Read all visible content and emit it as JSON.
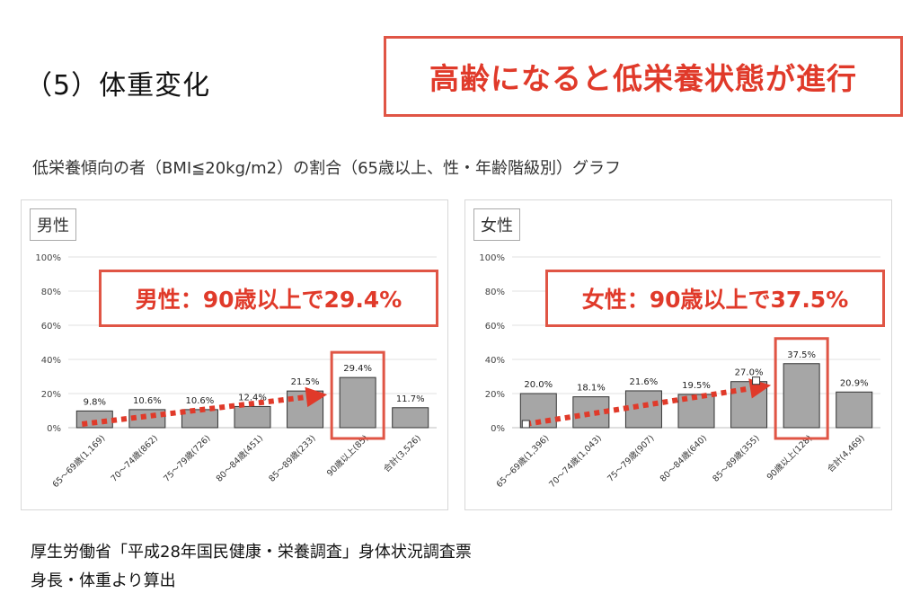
{
  "section_title": "（5）体重変化",
  "headline": "高齢になると低栄養状態が進行",
  "chart_caption": "低栄養傾向の者（BMI≦20kg/m2）の割合（65歳以上、性・年齢階級別）グラフ",
  "colors": {
    "accent": "#e05545",
    "bar": "#a6a6a6",
    "arrow": "#e03a2a"
  },
  "chart_data": [
    {
      "type": "bar",
      "panel_label": "男性",
      "callout": "男性：90歳以上で29.4%",
      "categories": [
        "65～69歳(1,169)",
        "70～74歳(862)",
        "75～79歳(726)",
        "80～84歳(451)",
        "85～89歳(233)",
        "90歳以上(85)",
        "合計(3,526)"
      ],
      "values": [
        9.8,
        10.6,
        10.6,
        12.4,
        21.5,
        29.4,
        11.7
      ],
      "data_labels": [
        "9.8%",
        "10.6%",
        "10.6%",
        "12.4%",
        "21.5%",
        "29.4%",
        "11.7%"
      ],
      "y_ticks": [
        "0%",
        "20%",
        "40%",
        "60%",
        "80%",
        "100%"
      ],
      "ylim": [
        0,
        100
      ],
      "highlight_index": 5,
      "grid": true
    },
    {
      "type": "bar",
      "panel_label": "女性",
      "callout": "女性：90歳以上で37.5%",
      "categories": [
        "65～69歳(1,396)",
        "70～74歳(1,043)",
        "75～79歳(907)",
        "80～84歳(640)",
        "85～89歳(355)",
        "90歳以上(128)",
        "合計(4,469)"
      ],
      "values": [
        20.0,
        18.1,
        21.6,
        19.5,
        27.0,
        37.5,
        20.9
      ],
      "data_labels": [
        "20.0%",
        "18.1%",
        "21.6%",
        "19.5%",
        "27.0%",
        "37.5%",
        "20.9%"
      ],
      "y_ticks": [
        "0%",
        "20%",
        "40%",
        "60%",
        "80%",
        "100%"
      ],
      "ylim": [
        0,
        100
      ],
      "highlight_index": 5,
      "grid": true
    }
  ],
  "source_lines": [
    "厚生労働省「平成28年国民健康・栄養調査」身体状況調査票",
    "身長・体重より算出"
  ]
}
